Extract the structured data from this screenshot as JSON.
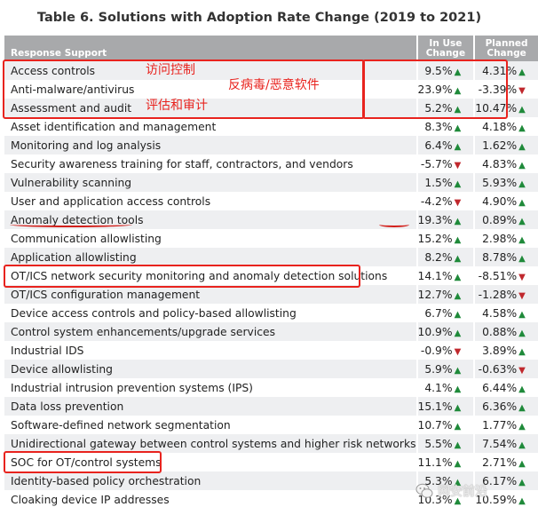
{
  "title": "Table 6. Solutions with Adoption Rate Change (2019 to 2021)",
  "headers": {
    "col0": "Response Support",
    "col1_line1": "In Use",
    "col1_line2": "Change",
    "col2_line1": "Planned",
    "col2_line2": "Change"
  },
  "rows": [
    {
      "name": "Access controls",
      "in_use": "9.5%",
      "in_use_dir": "up",
      "planned": "4.31%",
      "planned_dir": "up"
    },
    {
      "name": "Anti-malware/antivirus",
      "in_use": "23.9%",
      "in_use_dir": "up",
      "planned": "-3.39%",
      "planned_dir": "down"
    },
    {
      "name": "Assessment and audit",
      "in_use": "5.2%",
      "in_use_dir": "up",
      "planned": "10.47%",
      "planned_dir": "up"
    },
    {
      "name": "Asset identification and management",
      "in_use": "8.3%",
      "in_use_dir": "up",
      "planned": "4.18%",
      "planned_dir": "up"
    },
    {
      "name": "Monitoring and log analysis",
      "in_use": "6.4%",
      "in_use_dir": "up",
      "planned": "1.62%",
      "planned_dir": "up"
    },
    {
      "name": "Security awareness training for staff, contractors, and vendors",
      "in_use": "-5.7%",
      "in_use_dir": "down",
      "planned": "4.83%",
      "planned_dir": "up"
    },
    {
      "name": "Vulnerability scanning",
      "in_use": "1.5%",
      "in_use_dir": "up",
      "planned": "5.93%",
      "planned_dir": "up"
    },
    {
      "name": "User and application access controls",
      "in_use": "-4.2%",
      "in_use_dir": "down",
      "planned": "4.90%",
      "planned_dir": "up"
    },
    {
      "name": "Anomaly detection tools",
      "in_use": "19.3%",
      "in_use_dir": "up",
      "planned": "0.89%",
      "planned_dir": "up"
    },
    {
      "name": "Communication allowlisting",
      "in_use": "15.2%",
      "in_use_dir": "up",
      "planned": "2.98%",
      "planned_dir": "up"
    },
    {
      "name": "Application allowlisting",
      "in_use": "8.2%",
      "in_use_dir": "up",
      "planned": "8.78%",
      "planned_dir": "up"
    },
    {
      "name": "OT/ICS network security monitoring and anomaly detection solutions",
      "in_use": "14.1%",
      "in_use_dir": "up",
      "planned": "-8.51%",
      "planned_dir": "down"
    },
    {
      "name": "OT/ICS configuration management",
      "in_use": "12.7%",
      "in_use_dir": "up",
      "planned": "-1.28%",
      "planned_dir": "down"
    },
    {
      "name": "Device access controls and policy-based allowlisting",
      "in_use": "6.7%",
      "in_use_dir": "up",
      "planned": "4.58%",
      "planned_dir": "up"
    },
    {
      "name": "Control system enhancements/upgrade services",
      "in_use": "10.9%",
      "in_use_dir": "up",
      "planned": "0.88%",
      "planned_dir": "up"
    },
    {
      "name": "Industrial IDS",
      "in_use": "-0.9%",
      "in_use_dir": "down",
      "planned": "3.89%",
      "planned_dir": "up"
    },
    {
      "name": "Device allowlisting",
      "in_use": "5.9%",
      "in_use_dir": "up",
      "planned": "-0.63%",
      "planned_dir": "down"
    },
    {
      "name": "Industrial intrusion prevention systems (IPS)",
      "in_use": "4.1%",
      "in_use_dir": "up",
      "planned": "6.44%",
      "planned_dir": "up"
    },
    {
      "name": "Data loss prevention",
      "in_use": "15.1%",
      "in_use_dir": "up",
      "planned": "6.36%",
      "planned_dir": "up"
    },
    {
      "name": "Software-defined network segmentation",
      "in_use": "10.7%",
      "in_use_dir": "up",
      "planned": "1.77%",
      "planned_dir": "up"
    },
    {
      "name": "Unidirectional gateway between control systems and higher risk networks",
      "in_use": "5.5%",
      "in_use_dir": "up",
      "planned": "7.54%",
      "planned_dir": "up"
    },
    {
      "name": "SOC for OT/control systems",
      "in_use": "11.1%",
      "in_use_dir": "up",
      "planned": "2.71%",
      "planned_dir": "up"
    },
    {
      "name": "Identity-based policy orchestration",
      "in_use": "5.3%",
      "in_use_dir": "up",
      "planned": "6.17%",
      "planned_dir": "up"
    },
    {
      "name": "Cloaking device IP addresses",
      "in_use": "10.3%",
      "in_use_dir": "up",
      "planned": "10.59%",
      "planned_dir": "up"
    }
  ],
  "annotations": {
    "access_controls": "访问控制",
    "anti_malware": "反病毒/恶意软件",
    "assessment": "评估和审计"
  },
  "watermark": {
    "text": "网安前沿",
    "icon": "wechat-icon"
  },
  "colors": {
    "up": "#1f8a3a",
    "down": "#c0282d",
    "annotation": "#e8231e",
    "header_bg": "#a8a9ab"
  }
}
